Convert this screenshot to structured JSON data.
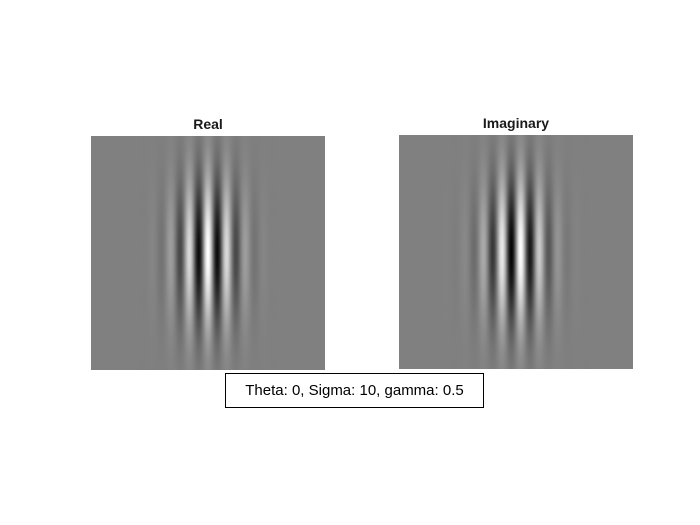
{
  "panels": {
    "real": {
      "title": "Real"
    },
    "imaginary": {
      "title": "Imaginary"
    }
  },
  "caption": "Theta: 0, Sigma: 10, gamma: 0.5",
  "colors": {
    "background_gray": "#808080",
    "page": "#ffffff"
  }
}
